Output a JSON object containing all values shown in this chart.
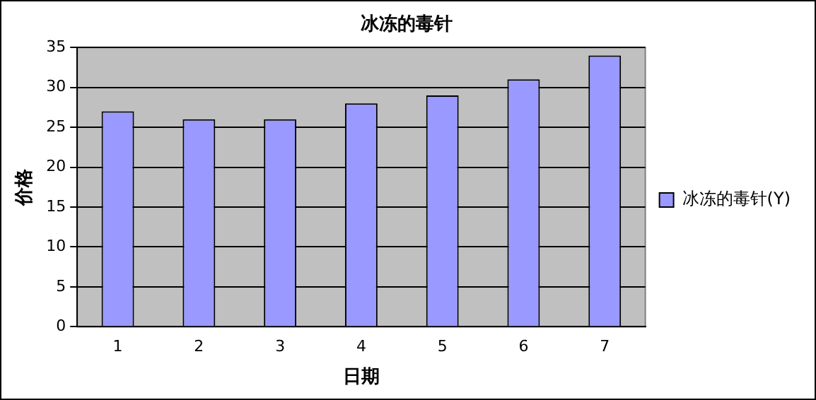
{
  "chart_data": {
    "type": "bar",
    "title": "冰冻的毒针",
    "xlabel": "日期",
    "ylabel": "价格",
    "categories": [
      "1",
      "2",
      "3",
      "4",
      "5",
      "6",
      "7"
    ],
    "series": [
      {
        "name": "冰冻的毒针(Y)",
        "color": "#9999ff",
        "values": [
          27,
          26,
          26,
          28,
          29,
          31,
          34
        ]
      }
    ],
    "ylim": [
      0,
      35
    ],
    "yticks": [
      0,
      5,
      10,
      15,
      20,
      25,
      30,
      35
    ],
    "grid": "y",
    "legend": "right"
  }
}
